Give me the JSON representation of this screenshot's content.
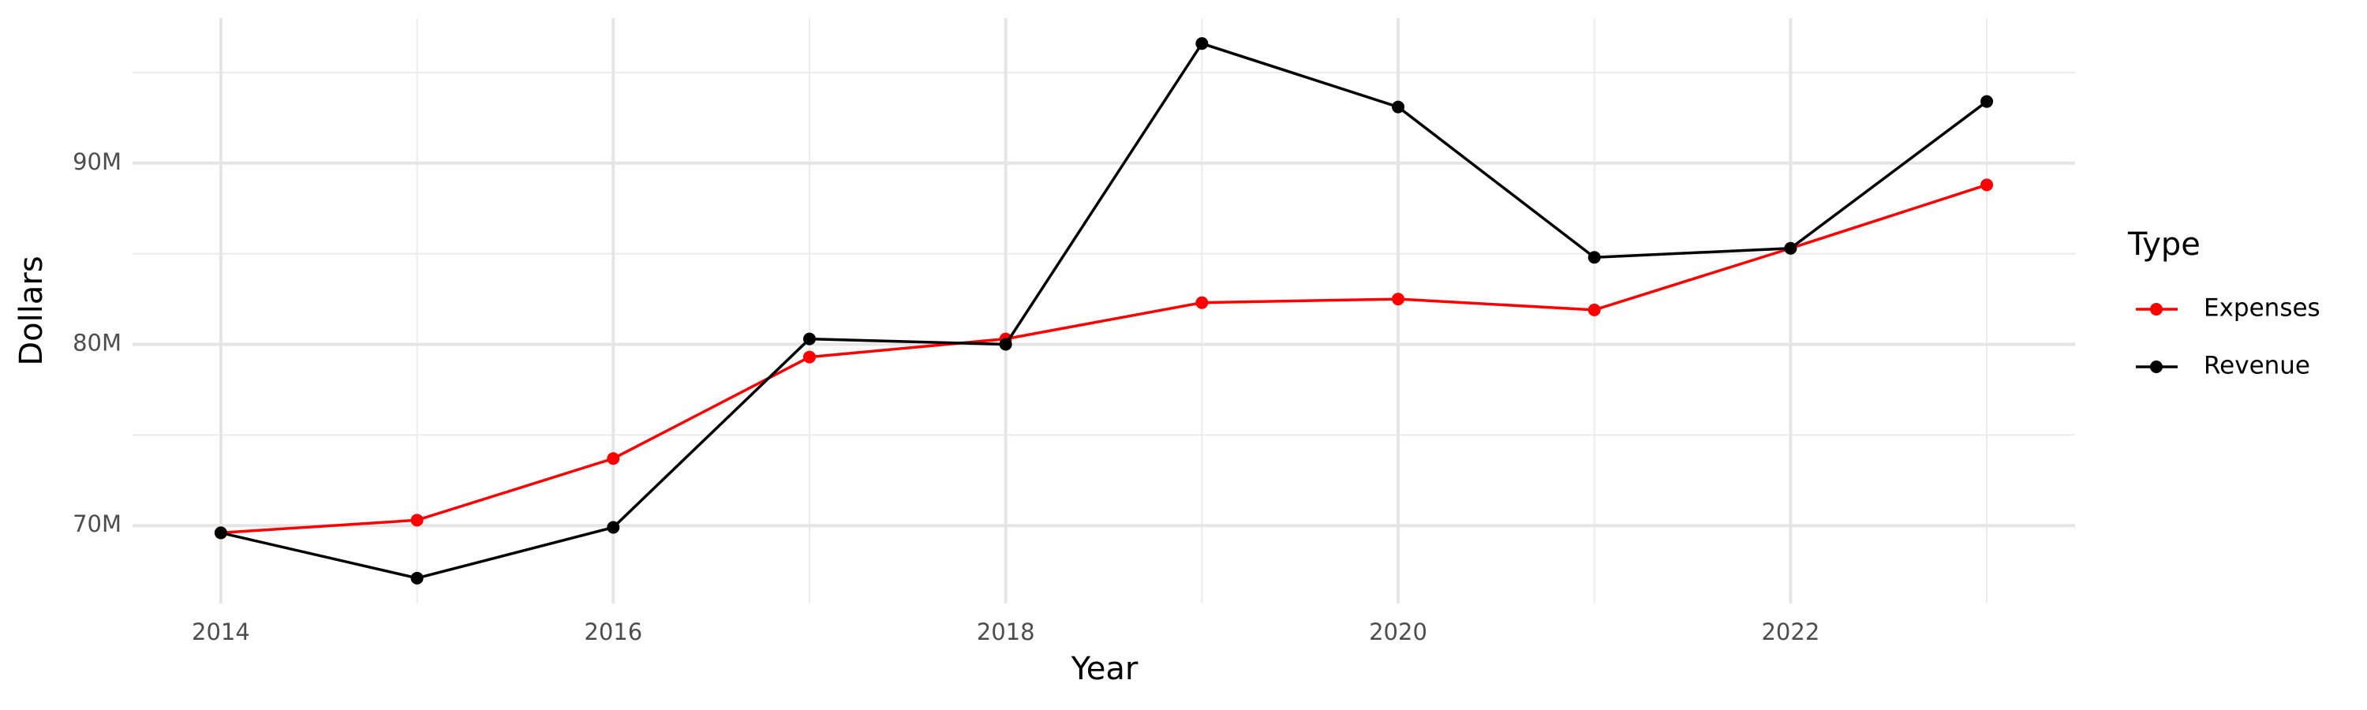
{
  "chart_data": {
    "type": "line",
    "x_label": "Year",
    "y_label": "Dollars",
    "legend_title": "Type",
    "legend_position": "right",
    "grid": true,
    "x": [
      2014,
      2015,
      2016,
      2017,
      2018,
      2019,
      2020,
      2021,
      2022,
      2023
    ],
    "series": [
      {
        "name": "Expenses",
        "color": "#ff0000",
        "values": [
          69600000,
          70300000,
          73700000,
          79300000,
          80300000,
          82300000,
          82500000,
          81900000,
          85300000,
          88800000
        ]
      },
      {
        "name": "Revenue",
        "color": "#000000",
        "values": [
          69600000,
          67100000,
          69900000,
          80300000,
          80000000,
          96600000,
          93100000,
          84800000,
          85300000,
          93400000
        ]
      }
    ],
    "xlim": [
      2013.55,
      2023.45
    ],
    "xticks": [
      2014,
      2016,
      2018,
      2020,
      2022
    ],
    "ylim": [
      65700000,
      98000000
    ],
    "yticks": [
      {
        "value": 70000000,
        "label": "70M"
      },
      {
        "value": 80000000,
        "label": "80M"
      },
      {
        "value": 90000000,
        "label": "90M"
      }
    ]
  }
}
